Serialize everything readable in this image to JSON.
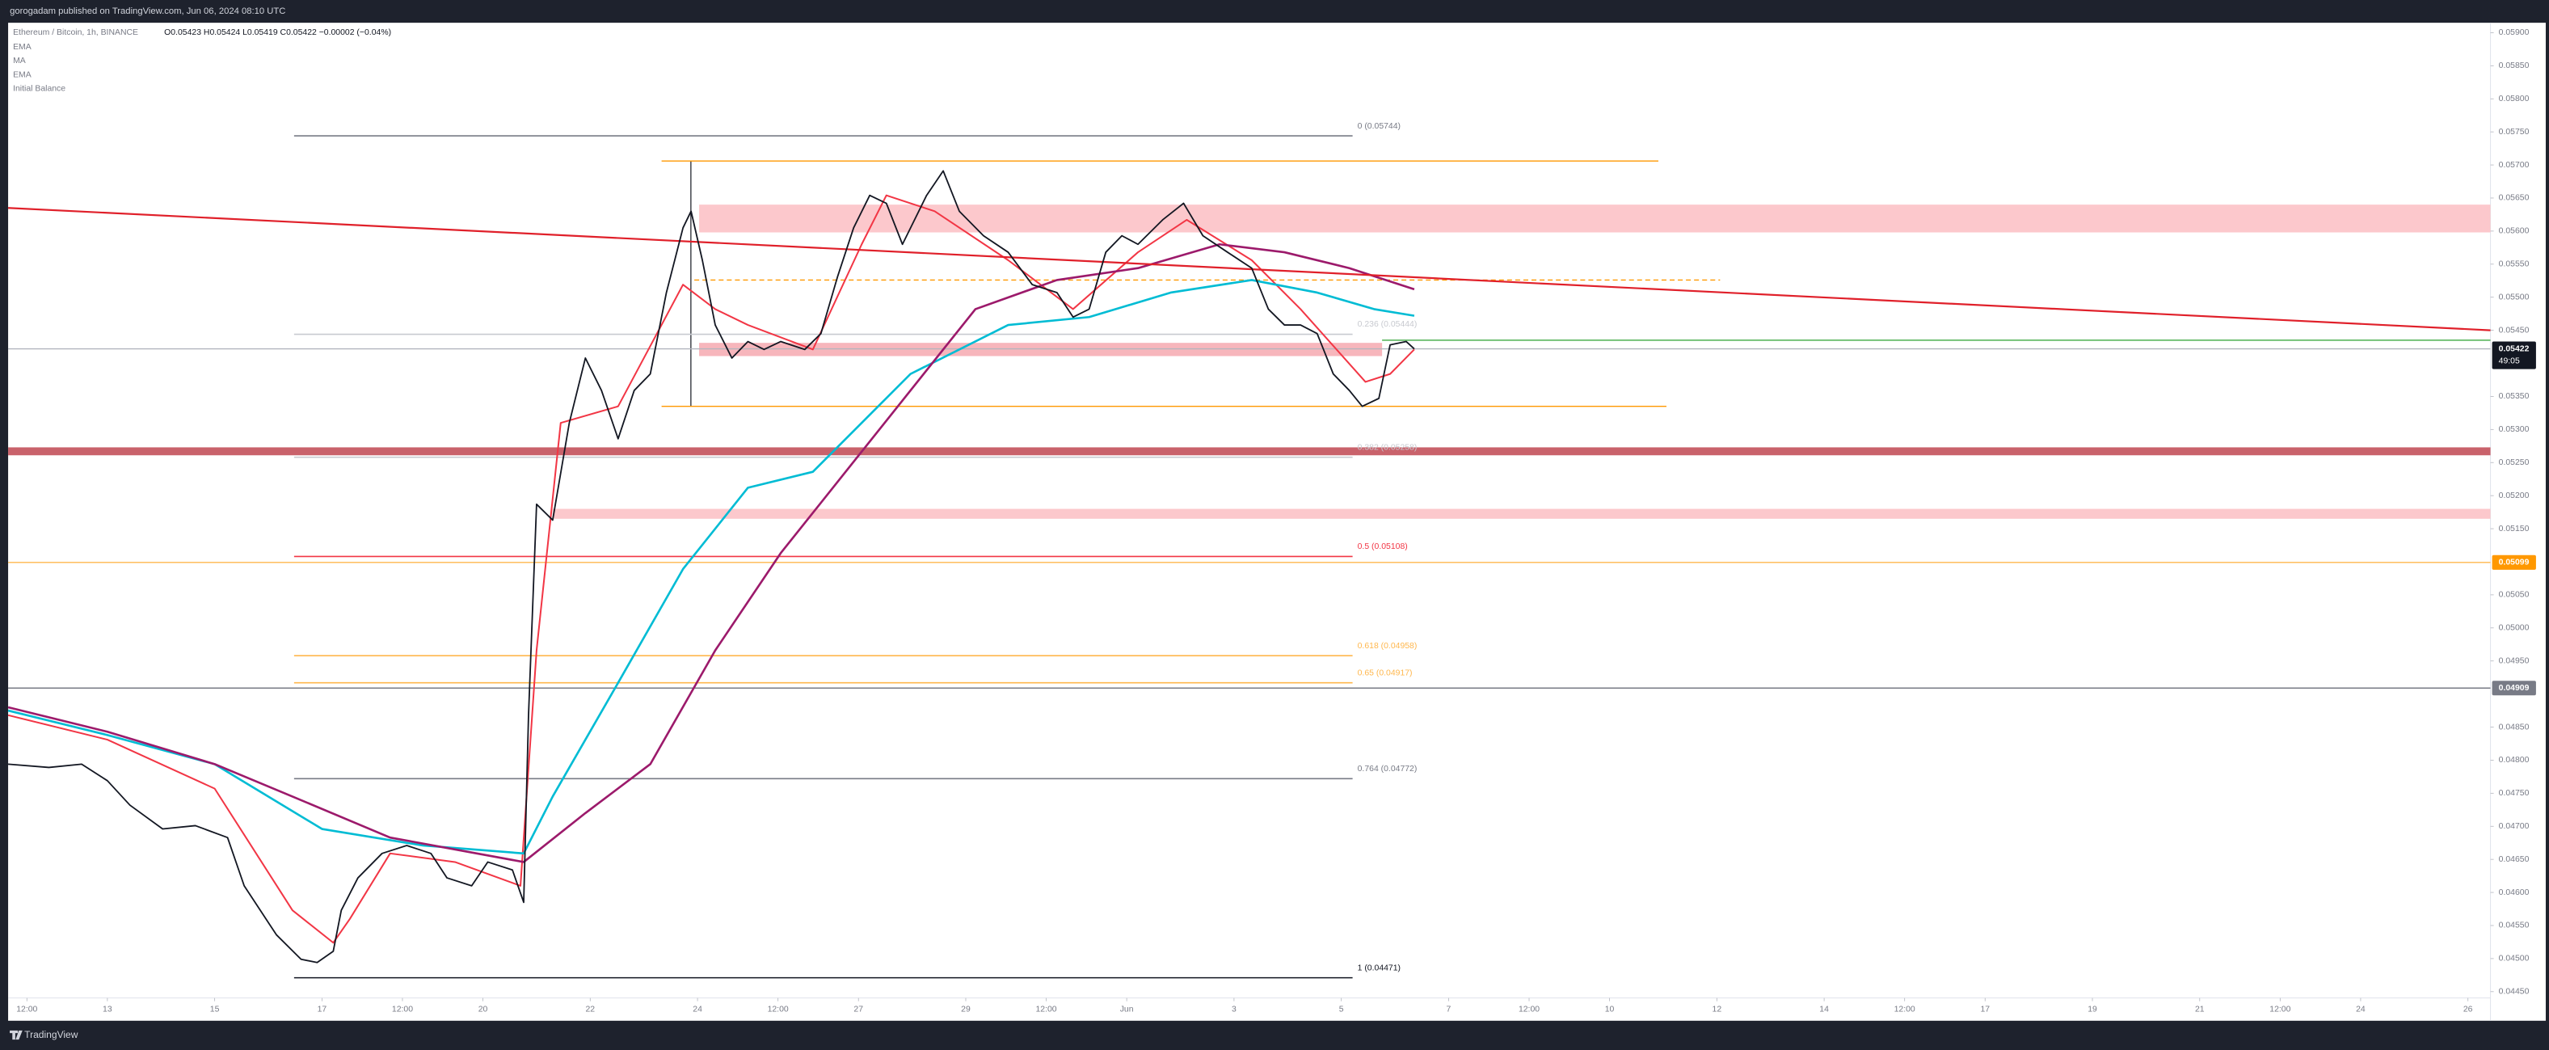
{
  "chart_data": {
    "type": "line",
    "header": "gorogadam published on TradingView.com, Jun 06, 2024 08:10 UTC",
    "symbol": "Ethereum / Bitcoin, 1h, BINANCE",
    "ohlc": "O0.05423 H0.05424 L0.05419 C0.05422 −0.00002 (−0.04%)",
    "legend": [
      "EMA",
      "MA",
      "EMA",
      "Initial Balance"
    ],
    "footer": "TradingView",
    "grid": false,
    "xlim": [
      11.15,
      57.42
    ],
    "ylim": [
      0.04406,
      0.05915
    ],
    "xticks": [
      {
        "value": 11.5,
        "label": "12:00"
      },
      {
        "value": 13,
        "label": "13"
      },
      {
        "value": 15,
        "label": "15"
      },
      {
        "value": 17,
        "label": "17"
      },
      {
        "value": 18.5,
        "label": "12:00"
      },
      {
        "value": 20,
        "label": "20"
      },
      {
        "value": 22,
        "label": "22"
      },
      {
        "value": 24,
        "label": "24"
      },
      {
        "value": 25.5,
        "label": "12:00"
      },
      {
        "value": 27,
        "label": "27"
      },
      {
        "value": 29,
        "label": "29"
      },
      {
        "value": 30.5,
        "label": "12:00"
      },
      {
        "value": 32,
        "label": "Jun"
      },
      {
        "value": 34,
        "label": "3"
      },
      {
        "value": 36,
        "label": "5"
      },
      {
        "value": 38,
        "label": "7"
      },
      {
        "value": 39.5,
        "label": "12:00"
      },
      {
        "value": 41,
        "label": "10"
      },
      {
        "value": 43,
        "label": "12"
      },
      {
        "value": 45,
        "label": "14"
      },
      {
        "value": 46.5,
        "label": "12:00"
      },
      {
        "value": 48,
        "label": "17"
      },
      {
        "value": 50,
        "label": "19"
      },
      {
        "value": 52,
        "label": "21"
      },
      {
        "value": 53.5,
        "label": "12:00"
      },
      {
        "value": 55,
        "label": "24"
      },
      {
        "value": 57,
        "label": "26"
      }
    ],
    "yticks": [
      {
        "value": 0.059,
        "label": "0.05900"
      },
      {
        "value": 0.0585,
        "label": "0.05850"
      },
      {
        "value": 0.058,
        "label": "0.05800"
      },
      {
        "value": 0.0575,
        "label": "0.05750"
      },
      {
        "value": 0.057,
        "label": "0.05700"
      },
      {
        "value": 0.0565,
        "label": "0.05650"
      },
      {
        "value": 0.056,
        "label": "0.05600"
      },
      {
        "value": 0.0555,
        "label": "0.05550"
      },
      {
        "value": 0.055,
        "label": "0.05500"
      },
      {
        "value": 0.0545,
        "label": "0.05450"
      },
      {
        "value": 0.0535,
        "label": "0.05350"
      },
      {
        "value": 0.053,
        "label": "0.05300"
      },
      {
        "value": 0.0525,
        "label": "0.05250"
      },
      {
        "value": 0.052,
        "label": "0.05200"
      },
      {
        "value": 0.0515,
        "label": "0.05150"
      },
      {
        "value": 0.0505,
        "label": "0.05050"
      },
      {
        "value": 0.05,
        "label": "0.05000"
      },
      {
        "value": 0.0495,
        "label": "0.04950"
      },
      {
        "value": 0.0485,
        "label": "0.04850"
      },
      {
        "value": 0.048,
        "label": "0.04800"
      },
      {
        "value": 0.0475,
        "label": "0.04750"
      },
      {
        "value": 0.047,
        "label": "0.04700"
      },
      {
        "value": 0.0465,
        "label": "0.04650"
      },
      {
        "value": 0.046,
        "label": "0.04600"
      },
      {
        "value": 0.0455,
        "label": "0.04550"
      },
      {
        "value": 0.045,
        "label": "0.04500"
      },
      {
        "value": 0.0445,
        "label": "0.04450"
      }
    ],
    "zones": [
      {
        "range": [
          0.05598,
          0.0564
        ],
        "x": [
          24.03,
          57.42
        ],
        "color": "#fcc8cc"
      },
      {
        "range": [
          0.05261,
          0.05273
        ],
        "x": [
          11.15,
          57.42
        ],
        "color": "#c9626b"
      },
      {
        "range": [
          0.05165,
          0.0518
        ],
        "x": [
          21.3,
          57.42
        ],
        "color": "#fcc8cc"
      },
      {
        "range": [
          0.05411,
          0.05431
        ],
        "x": [
          24.03,
          36.76
        ],
        "color": "#f7b6bc"
      }
    ],
    "levels": [
      {
        "value": 0.05706,
        "x": [
          23.33,
          41.91
        ],
        "color": "#ff9800",
        "dash": false
      },
      {
        "value": 0.05335,
        "x": [
          23.33,
          42.06
        ],
        "color": "#ff9800",
        "dash": false
      },
      {
        "value": 0.05526,
        "x": [
          23.94,
          43.06
        ],
        "color": "#ff9800",
        "dash": true
      },
      {
        "value": 0.05435,
        "x": [
          36.76,
          57.42
        ],
        "color": "#4caf50",
        "dash": false
      },
      {
        "value": 0.05422,
        "x": [
          11.15,
          57.42
        ],
        "color": "#b2b5be",
        "dash": false
      },
      {
        "value": 0.05099,
        "x": [
          11.15,
          57.42
        ],
        "color": "#ffb74d",
        "dash": false
      },
      {
        "value": 0.04909,
        "x": [
          11.15,
          57.42
        ],
        "color": "#787b86",
        "dash": false
      }
    ],
    "fib_x": [
      16.48,
      36.21
    ],
    "fib": [
      {
        "label": "0 (0.05744)",
        "value": 0.05744,
        "color": "#787b86"
      },
      {
        "label": "0.236 (0.05444)",
        "value": 0.05444,
        "color": "#c8cad0"
      },
      {
        "label": "0.382 (0.05258)",
        "value": 0.05258,
        "color": "#c8cad0"
      },
      {
        "label": "0.5 (0.05108)",
        "value": 0.05108,
        "color": "#f23645"
      },
      {
        "label": "0.618 (0.04958)",
        "value": 0.04958,
        "color": "#ffb74d"
      },
      {
        "label": "0.65 (0.04917)",
        "value": 0.04917,
        "color": "#ffb74d"
      },
      {
        "label": "0.764 (0.04772)",
        "value": 0.04772,
        "color": "#787b86"
      },
      {
        "label": "1 (0.04471)",
        "value": 0.04471,
        "color": "#131722"
      }
    ],
    "price_labels": [
      {
        "value": 0.05422,
        "label": "0.05422",
        "color": "#131722"
      },
      {
        "value": 0.05099,
        "label": "0.05099",
        "color": "#ff9800"
      },
      {
        "value": 0.04909,
        "label": "0.04909",
        "color": "#787b86"
      }
    ],
    "countdown": "49:05",
    "series": [
      {
        "name": "Ethereum / Bitcoin",
        "color": "#131722",
        "width": 0.9,
        "x": [
          11.15,
          11.91,
          12.52,
          13,
          13.42,
          14.03,
          14.64,
          15.24,
          15.55,
          15.85,
          16.15,
          16.61,
          16.91,
          17.21,
          17.36,
          17.67,
          18.12,
          18.58,
          19.03,
          19.33,
          19.79,
          20.09,
          20.55,
          20.76,
          20.85,
          21,
          21.3,
          21.61,
          21.91,
          22.21,
          22.52,
          22.82,
          23.12,
          23.42,
          23.73,
          23.88,
          24.09,
          24.33,
          24.64,
          24.94,
          25.24,
          25.55,
          26,
          26.3,
          26.61,
          26.91,
          27.21,
          27.52,
          27.82,
          28.27,
          28.58,
          28.88,
          29.33,
          29.79,
          30.24,
          30.7,
          31,
          31.3,
          31.61,
          31.91,
          32.21,
          32.67,
          33.06,
          33.42,
          33.88,
          34.33,
          34.64,
          34.94,
          35.24,
          35.55,
          35.85,
          36.15,
          36.39,
          36.7,
          36.91,
          37.21,
          37.36
        ],
        "values": [
          0.04794,
          0.04789,
          0.04794,
          0.04769,
          0.04732,
          0.04696,
          0.04701,
          0.04683,
          0.0461,
          0.04573,
          0.04536,
          0.04499,
          0.04494,
          0.04511,
          0.04573,
          0.04622,
          0.04659,
          0.04671,
          0.04659,
          0.04622,
          0.0461,
          0.04646,
          0.04634,
          0.04585,
          0.04868,
          0.05187,
          0.05163,
          0.0531,
          0.05408,
          0.05359,
          0.05286,
          0.05359,
          0.05384,
          0.05507,
          0.05605,
          0.0563,
          0.05556,
          0.05458,
          0.05408,
          0.05433,
          0.05421,
          0.05433,
          0.05421,
          0.05445,
          0.05531,
          0.05605,
          0.05654,
          0.05642,
          0.0558,
          0.05654,
          0.05691,
          0.0563,
          0.05593,
          0.05568,
          0.05519,
          0.05507,
          0.0547,
          0.05482,
          0.05568,
          0.05593,
          0.0558,
          0.05617,
          0.05642,
          0.05593,
          0.05568,
          0.05544,
          0.05482,
          0.05458,
          0.05458,
          0.05445,
          0.05384,
          0.05359,
          0.05335,
          0.05347,
          0.05428,
          0.05433,
          0.05422
        ]
      },
      {
        "color": "#f23645",
        "width": 1,
        "x": [
          11.15,
          13,
          15,
          16.45,
          17.21,
          17.52,
          18.27,
          19.48,
          20.7,
          21,
          21.45,
          22.52,
          23.73,
          24.33,
          24.94,
          26.15,
          27.06,
          27.52,
          28.42,
          29.79,
          31,
          32.21,
          33.12,
          34.33,
          35.24,
          36.45,
          36.91,
          37.36
        ],
        "values": [
          0.04868,
          0.04831,
          0.04757,
          0.04573,
          0.04524,
          0.0456,
          0.04659,
          0.04646,
          0.0461,
          0.04966,
          0.0531,
          0.05335,
          0.05519,
          0.05482,
          0.05458,
          0.05421,
          0.0558,
          0.05654,
          0.0563,
          0.05556,
          0.05482,
          0.05568,
          0.05617,
          0.05556,
          0.05482,
          0.05372,
          0.05384,
          0.05421
        ]
      },
      {
        "color": "#00bcd4",
        "width": 1.3,
        "x": [
          11.15,
          13,
          15,
          17,
          18.88,
          20.76,
          21.3,
          22.52,
          23.73,
          24.94,
          26.15,
          27.97,
          29.79,
          31.3,
          32.82,
          34.33,
          35.55,
          36.61,
          37.36
        ],
        "values": [
          0.04875,
          0.04838,
          0.04794,
          0.04696,
          0.04671,
          0.04659,
          0.04745,
          0.04917,
          0.05089,
          0.05212,
          0.05236,
          0.05384,
          0.05458,
          0.0547,
          0.05507,
          0.05526,
          0.05507,
          0.05482,
          0.05472
        ]
      },
      {
        "color": "#9c1a6b",
        "width": 1.3,
        "x": [
          11.15,
          13,
          15,
          16.45,
          18.27,
          20.76,
          21.91,
          23.12,
          24.33,
          25.55,
          26.76,
          27.97,
          29.18,
          30.7,
          32.21,
          33.73,
          34.94,
          36.15,
          37.36
        ],
        "values": [
          0.0488,
          0.04843,
          0.04794,
          0.04745,
          0.04683,
          0.04646,
          0.0472,
          0.04794,
          0.04966,
          0.05113,
          0.05236,
          0.05359,
          0.05482,
          0.05526,
          0.05544,
          0.0558,
          0.05568,
          0.05544,
          0.05512
        ]
      },
      {
        "color": "#e0202a",
        "width": 1.1,
        "x": [
          11.15,
          57.42
        ],
        "values": [
          0.05635,
          0.0545
        ]
      }
    ]
  }
}
